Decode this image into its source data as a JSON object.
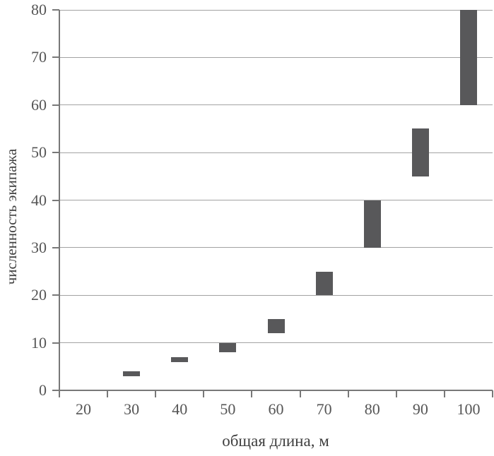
{
  "chart_data": {
    "type": "bar",
    "variant": "floating-range-bars",
    "title": "",
    "xlabel": "общая длина, м",
    "ylabel": "численность экипажа",
    "categories": [
      "20",
      "30",
      "40",
      "50",
      "60",
      "70",
      "80",
      "90",
      "100"
    ],
    "bars": [
      {
        "category": "30",
        "low": 3,
        "high": 4
      },
      {
        "category": "40",
        "low": 6,
        "high": 7
      },
      {
        "category": "50",
        "low": 8,
        "high": 10
      },
      {
        "category": "60",
        "low": 12,
        "high": 15
      },
      {
        "category": "70",
        "low": 20,
        "high": 25
      },
      {
        "category": "80",
        "low": 30,
        "high": 40
      },
      {
        "category": "90",
        "low": 45,
        "high": 55
      },
      {
        "category": "100",
        "low": 60,
        "high": 80
      }
    ],
    "y_ticks": [
      0,
      10,
      20,
      30,
      40,
      50,
      60,
      70,
      80
    ],
    "ylim": [
      0,
      80
    ],
    "grid": "horizontal",
    "legend": false,
    "colors": {
      "bar": "#58585a",
      "gridline": "#a3a3a3",
      "axis": "#787878",
      "tick_text": "#555555",
      "title_text": "#3f3f3f",
      "background": "#ffffff"
    }
  }
}
